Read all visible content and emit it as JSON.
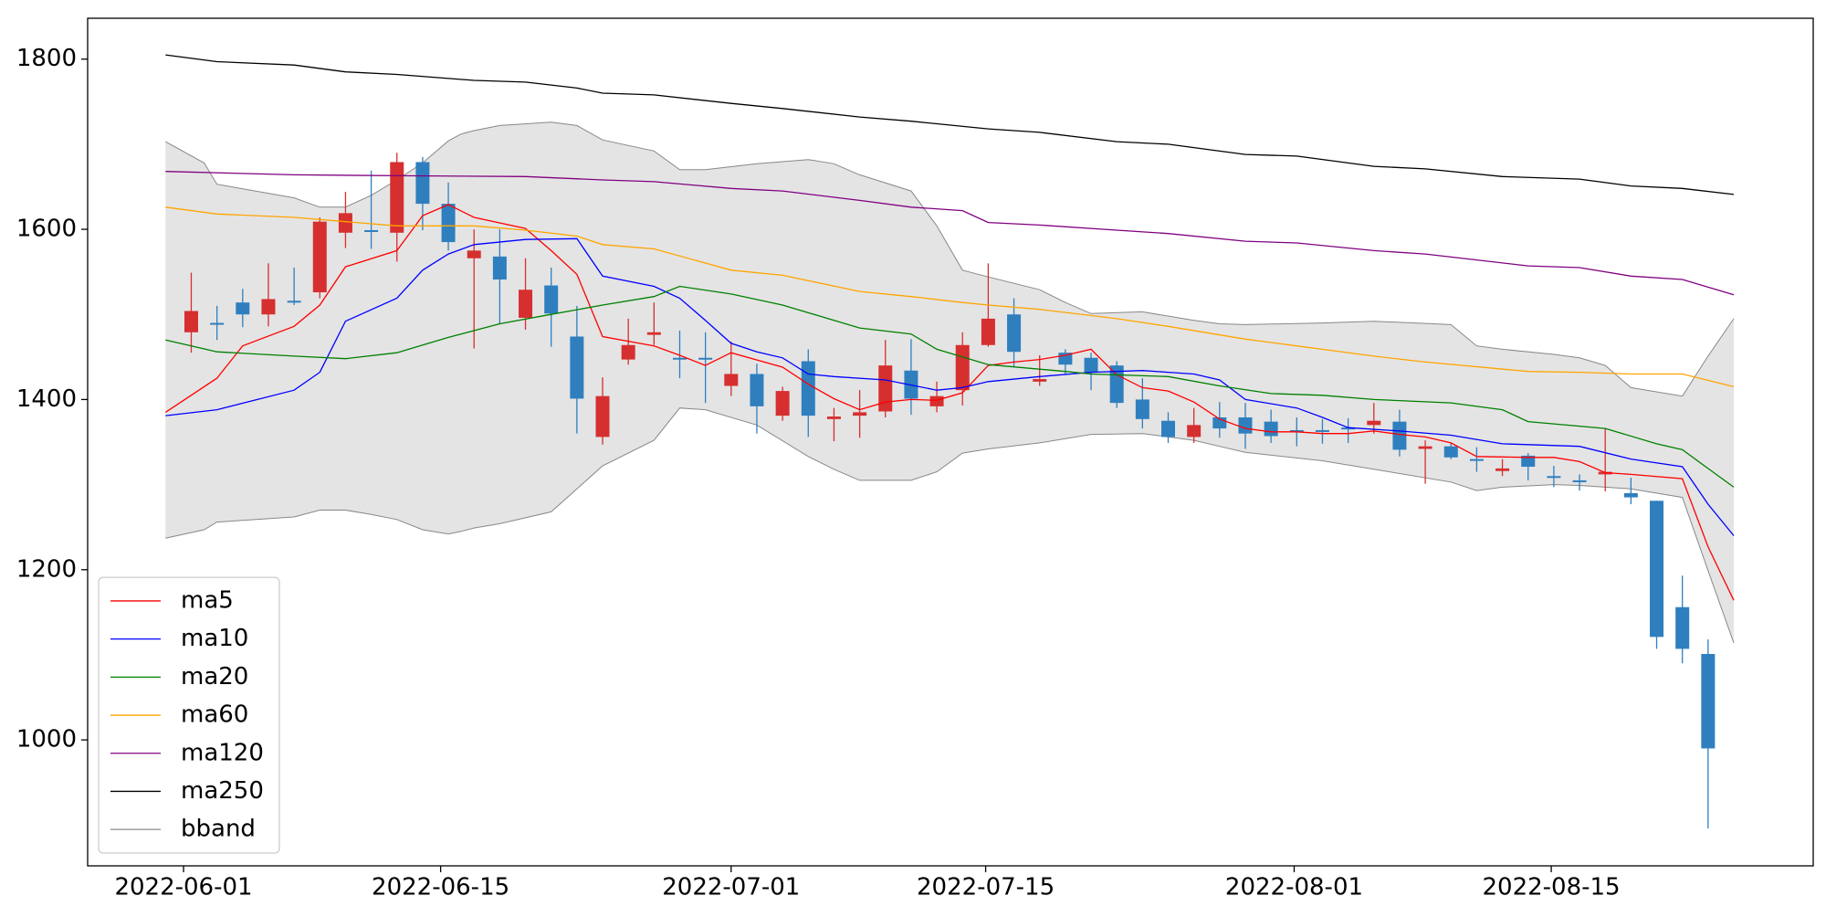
{
  "chart_data": {
    "type": "candlestick",
    "x": [
      1,
      2,
      3,
      4,
      5,
      6,
      7,
      8,
      9,
      10,
      11,
      12,
      13,
      14,
      15,
      16,
      17,
      18,
      19,
      20,
      21,
      22,
      23,
      24,
      25,
      26,
      27,
      28,
      29,
      30,
      31,
      32,
      33,
      34,
      35,
      36,
      37,
      38,
      39,
      40,
      41,
      42,
      43,
      44,
      45,
      46,
      47,
      48,
      49,
      50,
      51,
      52,
      53,
      54,
      55,
      56,
      57,
      58,
      59,
      60
    ],
    "open": [
      1479,
      1490,
      1514,
      1500,
      1516,
      1526,
      1596,
      1599,
      1596,
      1679,
      1630,
      1566,
      1568,
      1496,
      1534,
      1474,
      1356,
      1447,
      1476,
      1449,
      1449,
      1416,
      1430,
      1381,
      1445,
      1377,
      1381,
      1386,
      1434,
      1392,
      1411,
      1464,
      1500,
      1421,
      1455,
      1449,
      1440,
      1400,
      1375,
      1356,
      1379,
      1379,
      1374,
      1364,
      1364,
      1367,
      1370,
      1374,
      1342,
      1345,
      1330,
      1316,
      1334,
      1310,
      1305,
      1312,
      1290,
      1281,
      1156,
      1101
    ],
    "high": [
      1549,
      1510,
      1530,
      1560,
      1555,
      1614,
      1644,
      1669,
      1690,
      1685,
      1655,
      1600,
      1600,
      1566,
      1555,
      1510,
      1426,
      1495,
      1514,
      1481,
      1479,
      1468,
      1442,
      1415,
      1459,
      1390,
      1411,
      1470,
      1471,
      1421,
      1479,
      1560,
      1519,
      1452,
      1459,
      1455,
      1445,
      1425,
      1385,
      1390,
      1397,
      1396,
      1388,
      1379,
      1377,
      1378,
      1396,
      1388,
      1352,
      1349,
      1344,
      1330,
      1337,
      1322,
      1312,
      1366,
      1308,
      1281,
      1193,
      1118
    ],
    "low": [
      1455,
      1470,
      1485,
      1486,
      1511,
      1519,
      1578,
      1577,
      1562,
      1599,
      1575,
      1460,
      1489,
      1482,
      1462,
      1360,
      1347,
      1441,
      1464,
      1425,
      1396,
      1404,
      1360,
      1375,
      1356,
      1351,
      1355,
      1379,
      1382,
      1385,
      1393,
      1462,
      1438,
      1416,
      1429,
      1411,
      1390,
      1366,
      1349,
      1349,
      1355,
      1342,
      1349,
      1345,
      1348,
      1349,
      1360,
      1333,
      1301,
      1330,
      1315,
      1310,
      1305,
      1297,
      1293,
      1292,
      1277,
      1107,
      1090,
      896
    ],
    "close": [
      1504,
      1488,
      1500,
      1518,
      1514,
      1609,
      1619,
      1597,
      1679,
      1630,
      1585,
      1575,
      1541,
      1529,
      1501,
      1401,
      1404,
      1464,
      1479,
      1447,
      1447,
      1430,
      1392,
      1410,
      1381,
      1380,
      1385,
      1440,
      1401,
      1404,
      1464,
      1495,
      1456,
      1424,
      1441,
      1432,
      1396,
      1377,
      1356,
      1370,
      1366,
      1360,
      1357,
      1362,
      1362,
      1365,
      1375,
      1341,
      1345,
      1332,
      1328,
      1319,
      1321,
      1308,
      1303,
      1315,
      1285,
      1121,
      1107,
      990
    ],
    "up_color": "#d62f2f",
    "down_color": "#2f7fbf",
    "series": [
      {
        "name": "ma5",
        "color": "#ff0000",
        "x": [
          0,
          2,
          3,
          5,
          6,
          7,
          9,
          10,
          11,
          12,
          14,
          15,
          16,
          17,
          19,
          20,
          21,
          22,
          24,
          25,
          26,
          27,
          28,
          29,
          30,
          31,
          32,
          33,
          34,
          35,
          36,
          37,
          38,
          39,
          40,
          41,
          42,
          43,
          44,
          45,
          46,
          47,
          48,
          49,
          50,
          51,
          53,
          54,
          55,
          56,
          57,
          59,
          60,
          61
        ],
        "values": [
          1385,
          1425,
          1463,
          1486,
          1511,
          1556,
          1575,
          1616,
          1629,
          1614,
          1601,
          1575,
          1547,
          1474,
          1463,
          1452,
          1440,
          1455,
          1438,
          1418,
          1401,
          1388,
          1397,
          1400,
          1399,
          1408,
          1440,
          1444,
          1447,
          1452,
          1459,
          1429,
          1414,
          1410,
          1397,
          1377,
          1366,
          1362,
          1362,
          1360,
          1360,
          1363,
          1359,
          1356,
          1349,
          1333,
          1332,
          1332,
          1327,
          1314,
          1312,
          1307,
          1227,
          1164
        ]
      },
      {
        "name": "ma10",
        "color": "#0000ff",
        "x": [
          0,
          2,
          5,
          6,
          7,
          9,
          10,
          11,
          12,
          14,
          16,
          17,
          19,
          20,
          21,
          22,
          23,
          24,
          25,
          26,
          28,
          30,
          31,
          32,
          34,
          36,
          38,
          39,
          40,
          41,
          42,
          44,
          45,
          46,
          48,
          50,
          52,
          55,
          57,
          59,
          60,
          61
        ],
        "values": [
          1381,
          1388,
          1411,
          1432,
          1492,
          1519,
          1552,
          1571,
          1582,
          1588,
          1589,
          1545,
          1533,
          1519,
          1493,
          1466,
          1456,
          1449,
          1430,
          1427,
          1423,
          1411,
          1414,
          1421,
          1427,
          1432,
          1434,
          1432,
          1430,
          1423,
          1400,
          1390,
          1379,
          1367,
          1363,
          1358,
          1348,
          1345,
          1330,
          1321,
          1277,
          1240
        ]
      },
      {
        "name": "ma20",
        "color": "#008000",
        "x": [
          0,
          2,
          5,
          7,
          9,
          11,
          13,
          15,
          17,
          19,
          20,
          22,
          24,
          27,
          29,
          30,
          32,
          35,
          36,
          39,
          41,
          43,
          45,
          47,
          50,
          52,
          53,
          56,
          58,
          59,
          60,
          61
        ],
        "values": [
          1470,
          1456,
          1451,
          1448,
          1455,
          1473,
          1489,
          1500,
          1511,
          1521,
          1533,
          1524,
          1511,
          1484,
          1477,
          1459,
          1441,
          1433,
          1430,
          1427,
          1416,
          1407,
          1405,
          1400,
          1396,
          1388,
          1374,
          1366,
          1348,
          1341,
          1319,
          1297
        ]
      },
      {
        "name": "ma60",
        "color": "#ffa500",
        "x": [
          0,
          2,
          5,
          9,
          12,
          14,
          16,
          17,
          19,
          22,
          24,
          27,
          29,
          31,
          32,
          34,
          37,
          39,
          42,
          44,
          47,
          49,
          53,
          55,
          57,
          59,
          61
        ],
        "values": [
          1626,
          1618,
          1614,
          1604,
          1604,
          1599,
          1592,
          1582,
          1577,
          1552,
          1546,
          1527,
          1521,
          1514,
          1511,
          1506,
          1495,
          1486,
          1471,
          1463,
          1451,
          1444,
          1433,
          1432,
          1430,
          1430,
          1415
        ]
      },
      {
        "name": "ma120",
        "color": "#800080",
        "x": [
          0,
          5,
          9,
          14,
          17,
          19,
          22,
          24,
          27,
          29,
          31,
          32,
          34,
          37,
          39,
          42,
          44,
          47,
          49,
          53,
          55,
          57,
          59,
          61
        ],
        "values": [
          1668,
          1664,
          1663,
          1662,
          1658,
          1656,
          1648,
          1645,
          1634,
          1626,
          1622,
          1608,
          1605,
          1599,
          1595,
          1586,
          1584,
          1575,
          1571,
          1557,
          1555,
          1545,
          1541,
          1523
        ]
      },
      {
        "name": "ma250",
        "color": "#000000",
        "x": [
          0,
          2,
          5,
          7,
          9,
          12,
          14,
          16,
          17,
          19,
          22,
          24,
          27,
          29,
          32,
          34,
          37,
          39,
          42,
          44,
          47,
          49,
          52,
          55,
          57,
          59,
          61
        ],
        "values": [
          1805,
          1797,
          1793,
          1785,
          1782,
          1775,
          1773,
          1766,
          1760,
          1758,
          1748,
          1742,
          1732,
          1727,
          1718,
          1714,
          1703,
          1700,
          1688,
          1686,
          1674,
          1671,
          1662,
          1659,
          1651,
          1648,
          1641
        ]
      },
      {
        "name": "bband",
        "color": "#888888",
        "fill": "#e4e4e4",
        "x": [
          0,
          1.5,
          2,
          5,
          6,
          7,
          8,
          9,
          10,
          11,
          11.5,
          12,
          13,
          15,
          16,
          17,
          19,
          20,
          21,
          23,
          25,
          26,
          27,
          29,
          30,
          31,
          32,
          34,
          35,
          36,
          38,
          40,
          41,
          42,
          45,
          47,
          50,
          51,
          52,
          54,
          55,
          56,
          57,
          59,
          60,
          61
        ],
        "upper": [
          1703,
          1678,
          1653,
          1637,
          1626,
          1626,
          1640,
          1658,
          1678,
          1704,
          1712,
          1716,
          1722,
          1726,
          1722,
          1705,
          1692,
          1670,
          1670,
          1677,
          1682,
          1677,
          1664,
          1645,
          1604,
          1552,
          1544,
          1529,
          1514,
          1501,
          1503,
          1493,
          1489,
          1488,
          1490,
          1492,
          1488,
          1463,
          1459,
          1453,
          1449,
          1440,
          1414,
          1404,
          1451,
          1495
        ],
        "lower": [
          1237,
          1247,
          1256,
          1262,
          1270,
          1270,
          1265,
          1259,
          1247,
          1242,
          1245,
          1249,
          1254,
          1268,
          1295,
          1322,
          1352,
          1390,
          1388,
          1370,
          1333,
          1318,
          1305,
          1305,
          1315,
          1337,
          1342,
          1349,
          1354,
          1359,
          1360,
          1352,
          1345,
          1338,
          1328,
          1318,
          1303,
          1293,
          1297,
          1300,
          1299,
          1297,
          1295,
          1285,
          1199,
          1114
        ]
      }
    ],
    "xlim": [
      -3.03,
      64.09
    ],
    "xticks": [
      {
        "value": 0.7,
        "label": "2022-06-01"
      },
      {
        "value": 10.7,
        "label": "2022-06-15"
      },
      {
        "value": 22,
        "label": "2022-07-01"
      },
      {
        "value": 31.9,
        "label": "2022-07-15"
      },
      {
        "value": 43.9,
        "label": "2022-08-01"
      },
      {
        "value": 53.9,
        "label": "2022-08-15"
      }
    ],
    "ylim": [
      852,
      1848
    ],
    "yticks": [
      1000,
      1200,
      1400,
      1600,
      1800
    ],
    "legend": "lower left"
  }
}
